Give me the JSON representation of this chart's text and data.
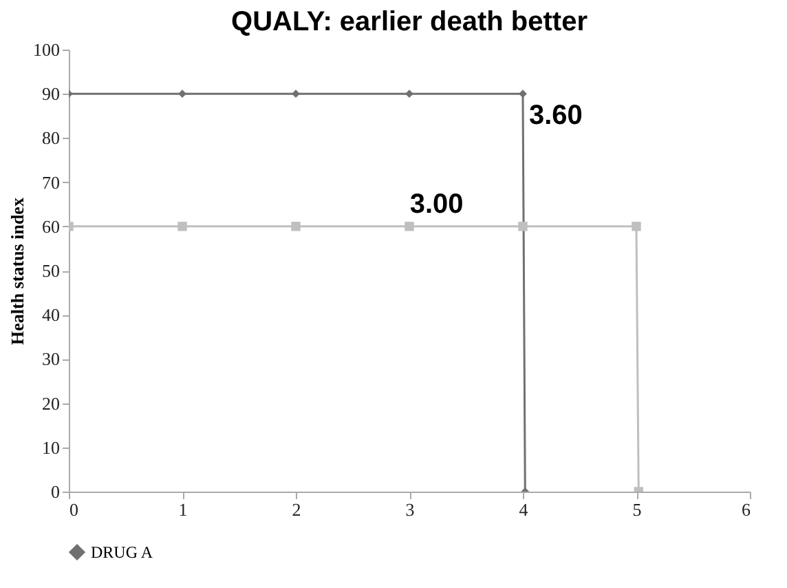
{
  "chart_data": {
    "type": "line",
    "title": "QUALY: earlier death better",
    "ylabel": "Health status index",
    "xlim": [
      0,
      6
    ],
    "xticks": [
      0,
      1,
      2,
      3,
      4,
      5,
      6
    ],
    "ylim": [
      0,
      100
    ],
    "yticks": [
      0,
      10,
      20,
      30,
      40,
      50,
      60,
      70,
      80,
      90,
      100
    ],
    "grid": false,
    "legend": "bottom",
    "series": [
      {
        "name": "DRUG A",
        "color": "#707070",
        "marker": "diamond",
        "x": [
          0,
          1,
          2,
          3,
          4,
          4.02
        ],
        "values": [
          90,
          90,
          90,
          90,
          90,
          0
        ]
      },
      {
        "color": "#bfbfbf",
        "marker": "square",
        "x": [
          0,
          1,
          2,
          3,
          4,
          5,
          5.02
        ],
        "values": [
          60,
          60,
          60,
          60,
          60,
          60,
          0
        ]
      }
    ],
    "annotations": [
      "3.60",
      "3.00"
    ]
  }
}
